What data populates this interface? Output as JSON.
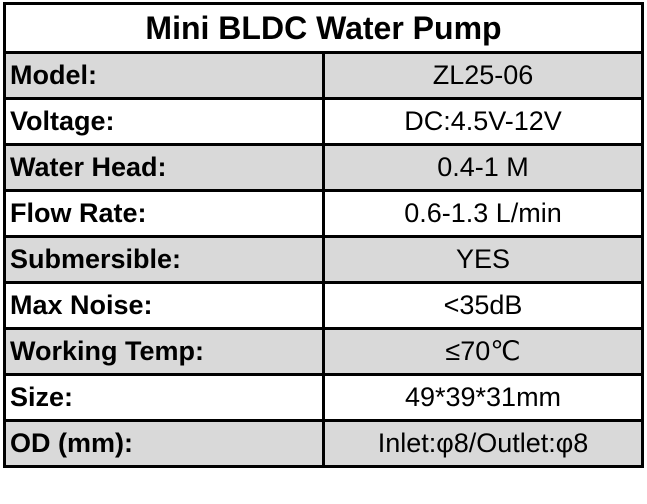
{
  "table": {
    "title": "Mini BLDC Water Pump",
    "rows": [
      [
        "Model:",
        "ZL25-06"
      ],
      [
        "Voltage:",
        "DC:4.5V-12V"
      ],
      [
        "Water Head:",
        "0.4-1 M"
      ],
      [
        "Flow Rate:",
        "0.6-1.3 L/min"
      ],
      [
        "Submersible:",
        "YES"
      ],
      [
        "Max Noise:",
        "<35dB"
      ],
      [
        "Working Temp:",
        "≤70℃"
      ],
      [
        "Size:",
        "49*39*31mm"
      ],
      [
        "OD (mm):",
        "Inlet:φ8/Outlet:φ8"
      ]
    ]
  }
}
